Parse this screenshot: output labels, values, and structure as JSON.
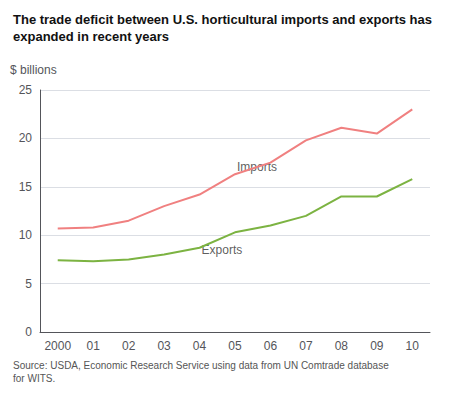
{
  "chart_data": {
    "type": "line",
    "title": "The trade deficit between U.S. horticultural imports and exports has expanded in recent years",
    "y_label": "$ billions",
    "source": "Source: USDA, Economic Research Service using data from UN Comtrade database for WITS.",
    "categories": [
      "2000",
      "01",
      "02",
      "03",
      "04",
      "05",
      "06",
      "07",
      "08",
      "09",
      "10"
    ],
    "series": [
      {
        "name": "Imports",
        "color": "#f08080",
        "values": [
          10.7,
          10.8,
          11.5,
          13.0,
          14.2,
          16.3,
          17.5,
          19.8,
          21.1,
          20.5,
          23.0
        ]
      },
      {
        "name": "Exports",
        "color": "#7cb342",
        "values": [
          7.4,
          7.3,
          7.5,
          8.0,
          8.7,
          10.3,
          11.0,
          12.0,
          14.0,
          14.0,
          15.8
        ]
      }
    ],
    "annotations": [
      {
        "text": "Imports",
        "x": "05",
        "y": 17.0
      },
      {
        "text": "Exports",
        "x": "04",
        "y": 8.5
      }
    ],
    "ylim": [
      0,
      25
    ],
    "yticks": [
      0,
      5,
      10,
      15,
      20,
      25
    ],
    "grid": true
  }
}
